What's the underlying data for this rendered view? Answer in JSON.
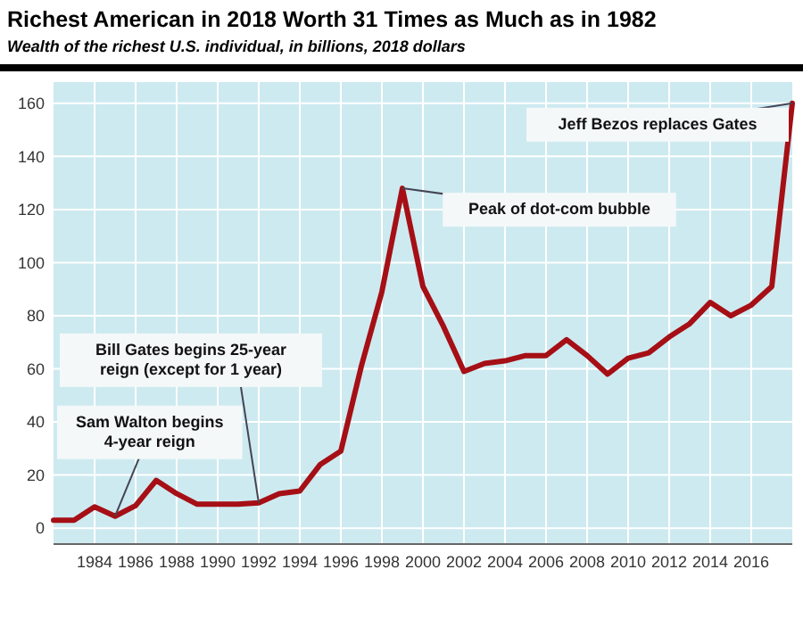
{
  "chart_data": {
    "type": "line",
    "title": "Richest American in 2018 Worth 31 Times as Much as in 1982",
    "subtitle": "Wealth of the richest U.S. individual, in billions, 2018 dollars",
    "x": [
      1982,
      1983,
      1984,
      1985,
      1986,
      1987,
      1988,
      1989,
      1990,
      1991,
      1992,
      1993,
      1994,
      1995,
      1996,
      1997,
      1998,
      1999,
      2000,
      2001,
      2002,
      2003,
      2004,
      2005,
      2006,
      2007,
      2008,
      2009,
      2010,
      2011,
      2012,
      2013,
      2014,
      2015,
      2016,
      2017,
      2018
    ],
    "series": [
      {
        "color": "#a50f15",
        "values": [
          3,
          3,
          8,
          4.5,
          8.5,
          18,
          13,
          9,
          9,
          9,
          9.5,
          13,
          14,
          24,
          29,
          61,
          89,
          128,
          91,
          76,
          59,
          62,
          63,
          65,
          65,
          71,
          65,
          58,
          64,
          66,
          72,
          77,
          85,
          80,
          84,
          91,
          160
        ]
      }
    ],
    "xlim": [
      1982,
      2018
    ],
    "xticks": [
      1984,
      1986,
      1988,
      1990,
      1992,
      1994,
      1996,
      1998,
      2000,
      2002,
      2004,
      2006,
      2008,
      2010,
      2012,
      2014,
      2016
    ],
    "ylim": [
      -6,
      168
    ],
    "yticks": [
      0,
      20,
      40,
      60,
      80,
      100,
      120,
      140,
      160
    ],
    "grid": true,
    "marker": "none",
    "line_style": "solid",
    "annotations": [
      {
        "text": "Sam Walton begins 4-year reign",
        "x": 1985,
        "y": 4.5
      },
      {
        "text": "Bill Gates begins 25-year reign (except for 1 year)",
        "x": 1992,
        "y": 9.5
      },
      {
        "text": "Peak of dot-com bubble",
        "x": 1999,
        "y": 128
      },
      {
        "text": "Jeff Bezos replaces Gates",
        "x": 2018,
        "y": 160
      }
    ]
  }
}
